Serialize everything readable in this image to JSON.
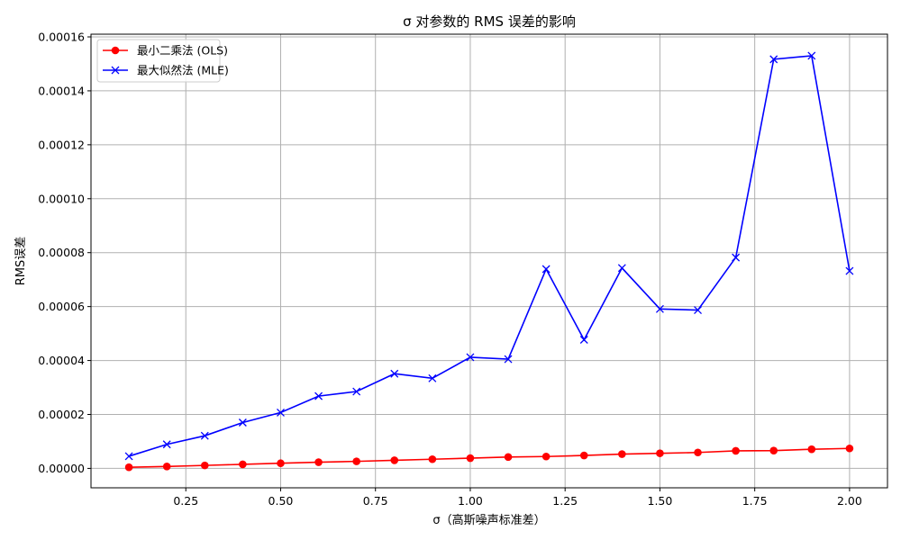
{
  "chart_data": {
    "type": "line",
    "title": "σ 对参数的 RMS 误差的影响",
    "xlabel": "σ（高斯噪声标准差）",
    "ylabel": "RMS误差",
    "xlim": [
      0.0,
      2.1
    ],
    "ylim": [
      -7.2e-06,
      0.000161
    ],
    "x": [
      0.1,
      0.2,
      0.3,
      0.4,
      0.5,
      0.6,
      0.7,
      0.8,
      0.9,
      1.0,
      1.1,
      1.2,
      1.3,
      1.4,
      1.5,
      1.6,
      1.7,
      1.8,
      1.9,
      2.0
    ],
    "x_ticks": [
      0.25,
      0.5,
      0.75,
      1.0,
      1.25,
      1.5,
      1.75,
      2.0
    ],
    "x_tick_labels": [
      "0.25",
      "0.50",
      "0.75",
      "1.00",
      "1.25",
      "1.50",
      "1.75",
      "2.00"
    ],
    "y_ticks": [
      0,
      2e-05,
      4e-05,
      6e-05,
      8e-05,
      0.0001,
      0.00012,
      0.00014,
      0.00016
    ],
    "y_tick_labels": [
      "0.00000",
      "0.00002",
      "0.00004",
      "0.00006",
      "0.00008",
      "0.00010",
      "0.00012",
      "0.00014",
      "0.00016"
    ],
    "grid": true,
    "legend_position": "top-left",
    "series": [
      {
        "name": "最小二乘法 (OLS)",
        "color": "#ff0000",
        "marker": "circle",
        "values": [
          4e-07,
          7e-07,
          1.1e-06,
          1.5e-06,
          1.9e-06,
          2.3e-06,
          2.6e-06,
          3e-06,
          3.4e-06,
          3.8e-06,
          4.2e-06,
          4.4e-06,
          4.8e-06,
          5.3e-06,
          5.6e-06,
          5.9e-06,
          6.5e-06,
          6.6e-06,
          7.1e-06,
          7.4e-06
        ]
      },
      {
        "name": "最大似然法 (MLE)",
        "color": "#0000ff",
        "marker": "x",
        "values": [
          4.5e-06,
          8.9e-06,
          1.21e-05,
          1.7e-05,
          2.07e-05,
          2.68e-05,
          2.85e-05,
          3.51e-05,
          3.34e-05,
          4.12e-05,
          4.05e-05,
          7.39e-05,
          4.77e-05,
          7.43e-05,
          5.91e-05,
          5.87e-05,
          7.82e-05,
          0.0001517,
          0.000153,
          7.32e-05
        ]
      }
    ]
  }
}
